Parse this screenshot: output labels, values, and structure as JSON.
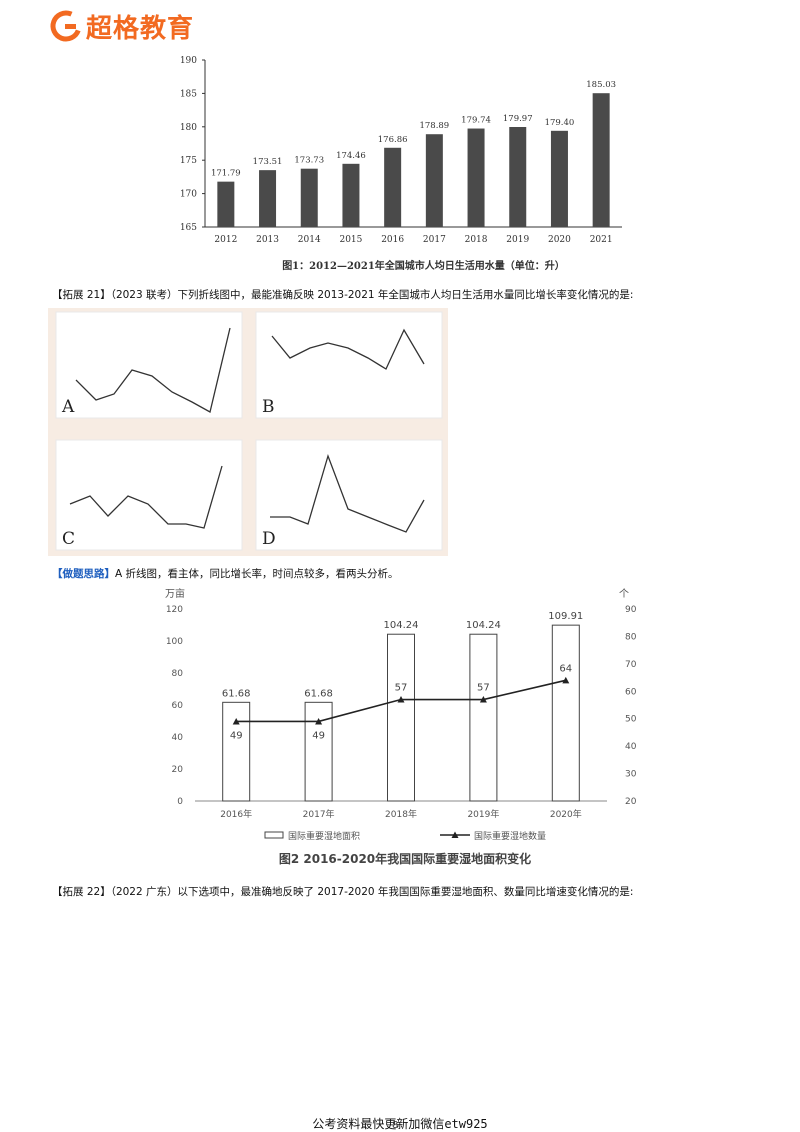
{
  "header": {
    "brand": "超格教育"
  },
  "chart1": {
    "chart_data": {
      "type": "bar",
      "title": "图1：2012—2021年全国城市人均日生活用水量（单位：升）",
      "categories": [
        "2012",
        "2013",
        "2014",
        "2015",
        "2016",
        "2017",
        "2018",
        "2019",
        "2020",
        "2021"
      ],
      "values": [
        171.79,
        173.51,
        173.73,
        174.46,
        176.86,
        178.89,
        179.74,
        179.97,
        179.4,
        185.03
      ],
      "value_labels": [
        "171.79",
        "173.51",
        "173.73",
        "174.46",
        "176.86",
        "178.89",
        "179.74",
        "179.97",
        "179.40",
        "185.03"
      ],
      "ylim": [
        165,
        190
      ],
      "yticks": [
        "165",
        "170",
        "175",
        "180",
        "185",
        "190"
      ],
      "bar_color": "#4a4a4a"
    }
  },
  "question21": {
    "text": "【拓展 21】（2023 联考）下列折线图中，最能准确反映 2013-2021 年全国城市人均日生活用水量同比增长率变化情况的是:",
    "options": [
      "A",
      "B",
      "C",
      "D"
    ]
  },
  "hint": {
    "label": "【做题思路】",
    "text": "A 折线图，看主体，同比增长率，时间点较多，看两头分析。"
  },
  "chart2": {
    "chart_data": {
      "type": "bar",
      "title": "图2 2016-2020年我国国际重要湿地面积变化",
      "categories": [
        "2016年",
        "2017年",
        "2018年",
        "2019年",
        "2020年"
      ],
      "left_unit": "万亩",
      "right_unit": "个",
      "series": [
        {
          "name": "国际重要湿地面积",
          "type": "bar",
          "values": [
            61.68,
            61.68,
            104.24,
            104.24,
            109.91
          ],
          "value_labels": [
            "61.68",
            "61.68",
            "104.24",
            "104.24",
            "109.91"
          ]
        },
        {
          "name": "国际重要湿地数量",
          "type": "line",
          "values": [
            49,
            49,
            57,
            57,
            64
          ],
          "value_labels": [
            "49",
            "49",
            "57",
            "57",
            "64"
          ]
        }
      ],
      "ylim_left": [
        0,
        120
      ],
      "yticks_left": [
        "0",
        "20",
        "40",
        "60",
        "80",
        "100",
        "120"
      ],
      "ylim_right": [
        20,
        90
      ],
      "yticks_right": [
        "20",
        "30",
        "40",
        "50",
        "60",
        "70",
        "80",
        "90"
      ]
    }
  },
  "question22": {
    "text": "【拓展 22】（2022 广东）以下选项中，最准确地反映了 2017-2020 年我国国际重要湿地面积、数量同比增速变化情况的是:"
  },
  "footer": {
    "text": "公考资料最快更新加微信etw925",
    "page": "8"
  }
}
